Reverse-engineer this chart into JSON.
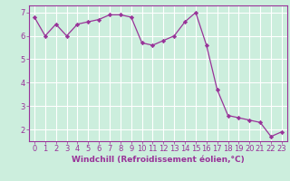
{
  "x": [
    0,
    1,
    2,
    3,
    4,
    5,
    6,
    7,
    8,
    9,
    10,
    11,
    12,
    13,
    14,
    15,
    16,
    17,
    18,
    19,
    20,
    21,
    22,
    23
  ],
  "y": [
    6.8,
    6.0,
    6.5,
    6.0,
    6.5,
    6.6,
    6.7,
    6.9,
    6.9,
    6.8,
    5.7,
    5.6,
    5.8,
    6.0,
    6.6,
    7.0,
    5.6,
    3.7,
    2.6,
    2.5,
    2.4,
    2.3,
    1.7,
    1.9
  ],
  "line_color": "#993399",
  "marker_color": "#993399",
  "bg_color": "#cceedd",
  "grid_color": "#ffffff",
  "xlabel": "Windchill (Refroidissement éolien,°C)",
  "xlim_min": -0.5,
  "xlim_max": 23.5,
  "ylim_min": 1.5,
  "ylim_max": 7.3,
  "yticks": [
    2,
    3,
    4,
    5,
    6,
    7
  ],
  "xticks": [
    0,
    1,
    2,
    3,
    4,
    5,
    6,
    7,
    8,
    9,
    10,
    11,
    12,
    13,
    14,
    15,
    16,
    17,
    18,
    19,
    20,
    21,
    22,
    23
  ],
  "xlabel_color": "#993399",
  "tick_color": "#993399",
  "spine_color": "#993399",
  "label_fontsize": 6.5,
  "tick_fontsize": 6.0,
  "linewidth": 0.9,
  "markersize": 2.2
}
